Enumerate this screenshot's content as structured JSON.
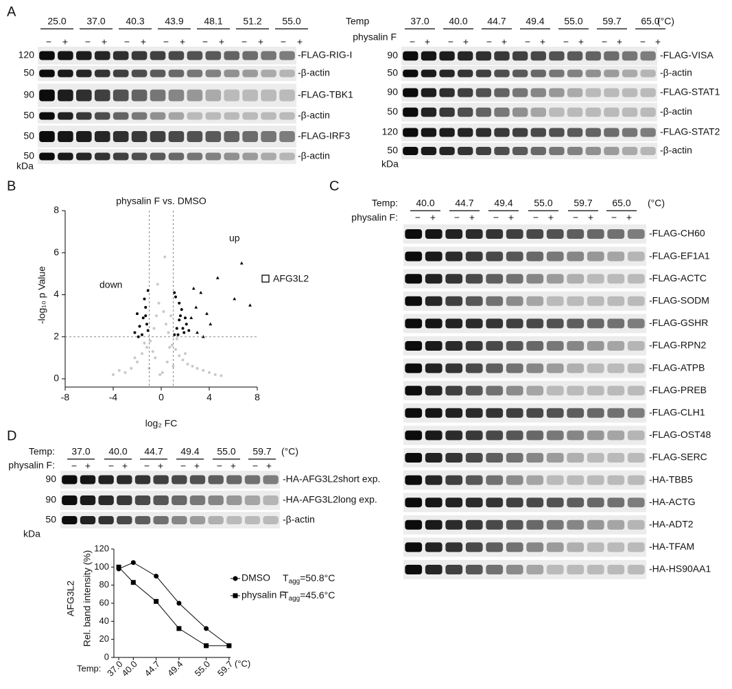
{
  "panel_labels": [
    "A",
    "B",
    "C",
    "D"
  ],
  "treatment_signs": [
    "−",
    "+"
  ],
  "kda_unit": "kDa",
  "panel_A": {
    "left": {
      "temps": [
        "25.0",
        "37.0",
        "40.3",
        "43.9",
        "48.1",
        "51.2",
        "55.0"
      ],
      "rows": [
        {
          "name": "-FLAG-RIG-I",
          "kda": "120"
        },
        {
          "name": "-β-actin",
          "kda": "50"
        },
        {
          "name": "-FLAG-TBK1",
          "kda": "90"
        },
        {
          "name": "-β-actin",
          "kda": "50"
        },
        {
          "name": "-FLAG-IRF3",
          "kda": "50"
        },
        {
          "name": "-β-actin",
          "kda": "50"
        }
      ]
    },
    "right": {
      "temp_label": "Temp",
      "treatment_label": "physalin F",
      "unit": "(°C)",
      "temps": [
        "37.0",
        "40.0",
        "44.7",
        "49.4",
        "55.0",
        "59.7",
        "65.0"
      ],
      "rows": [
        {
          "name": "-FLAG-VISA",
          "kda": "90"
        },
        {
          "name": "-β-actin",
          "kda": "50"
        },
        {
          "name": "-FLAG-STAT1",
          "kda": "90"
        },
        {
          "name": "-β-actin",
          "kda": "50"
        },
        {
          "name": "-FLAG-STAT2",
          "kda": "120"
        },
        {
          "name": "-β-actin",
          "kda": "50"
        }
      ]
    }
  },
  "panel_C": {
    "temp_label": "Temp:",
    "treatment_label": "physalin F:",
    "unit": "(°C)",
    "temps": [
      "40.0",
      "44.7",
      "49.4",
      "55.0",
      "59.7",
      "65.0"
    ],
    "rows": [
      "-FLAG-CH60",
      "-FLAG-EF1A1",
      "-FLAG-ACTC",
      "-FLAG-SODM",
      "-FLAG-GSHR",
      "-FLAG-RPN2",
      "-FLAG-ATPB",
      "-FLAG-PREB",
      "-FLAG-CLH1",
      "-FLAG-OST48",
      "-FLAG-SERC",
      "-HA-TBB5",
      "-HA-ACTG",
      "-HA-ADT2",
      "-HA-TFAM",
      "-HA-HS90AA1"
    ]
  },
  "panel_D": {
    "temp_label": "Temp:",
    "treatment_label": "physalin F:",
    "unit": "(°C)",
    "temps": [
      "37.0",
      "40.0",
      "44.7",
      "49.4",
      "55.0",
      "59.7"
    ],
    "rows": [
      {
        "name": "-HA-AFG3L2",
        "note": "short exp.",
        "kda": "90"
      },
      {
        "name": "-HA-AFG3L2",
        "note": "long exp.",
        "kda": "90"
      },
      {
        "name": "-β-actin",
        "kda": "50"
      }
    ]
  },
  "chart_data": [
    {
      "type": "scatter",
      "title": "physalin F vs. DMSO",
      "xlabel": "log₂ FC",
      "ylabel": "-log₁₀ p Value",
      "annotations": [
        "up",
        "down",
        "AFG3L2"
      ],
      "xlim": [
        -8,
        8
      ],
      "xticks": [
        -8,
        -4,
        0,
        4,
        8
      ],
      "ylim": [
        0,
        8
      ],
      "yticks": [
        0,
        2,
        4,
        6,
        8
      ],
      "hlines": [
        2
      ],
      "vlines": [
        -1,
        1
      ],
      "series": [
        {
          "color": "#c8c8c8",
          "marker": "circle",
          "x": [
            -3,
            -2.5,
            -2,
            -1.6,
            -1.2,
            -0.9,
            -0.6,
            -0.4,
            -0.2,
            0.2,
            0.4,
            0.6,
            0.9,
            1.2,
            1.5,
            1.8,
            2.2,
            2.6,
            3,
            3.5,
            4,
            4.5,
            5,
            -4,
            -3.5,
            -0.5,
            0.5,
            -0.3,
            0.3,
            0.7,
            -0.7,
            1,
            -1,
            0.1,
            -0.1,
            0.8,
            1.3,
            -1.4,
            2,
            -2.2
          ],
          "values": [
            0.3,
            0.5,
            0.8,
            1.2,
            1.5,
            1.8,
            2.4,
            3,
            3.6,
            3.2,
            2.6,
            2.2,
            1.6,
            1.4,
            1.1,
            0.9,
            0.7,
            0.6,
            0.5,
            0.4,
            0.3,
            0.2,
            0.15,
            0.2,
            0.4,
            1,
            0.8,
            4.5,
            5.8,
            1.5,
            1.3,
            0.6,
            0.5,
            0.3,
            0.2,
            3,
            1.9,
            1.7,
            1.2,
            1
          ]
        },
        {
          "color": "#000000",
          "marker": "circle",
          "x": [
            -2.2,
            -1.8,
            -1.5,
            -1.3,
            -1.1,
            -2,
            -1.6,
            -1.2,
            -1.4,
            -1.9,
            -1.1,
            -1.3
          ],
          "values": [
            2.2,
            2.5,
            2.9,
            3.4,
            4.2,
            3.1,
            2.1,
            2.6,
            3.8,
            2.0,
            2.3,
            3.0
          ]
        },
        {
          "color": "#000000",
          "marker": "circle",
          "x": [
            1.1,
            1.3,
            1.5,
            1.7,
            1.9,
            2.1,
            1.2,
            1.4,
            1.6,
            1.8,
            2.3,
            1.1,
            1.5,
            2
          ],
          "values": [
            2.1,
            2.4,
            2.8,
            3.3,
            2.2,
            2.6,
            3.9,
            2.1,
            3.0,
            2.4,
            2.3,
            4.1,
            3.6,
            2.9
          ]
        },
        {
          "color": "#000000",
          "marker": "triangle",
          "x": [
            2.5,
            2.9,
            3.3,
            3.8,
            4.1,
            3.0,
            2.7,
            4.7,
            6.7,
            7.4,
            6.1,
            3.5
          ],
          "values": [
            2.9,
            3.4,
            4.1,
            3.1,
            2.6,
            2.2,
            4.3,
            4.8,
            5.5,
            3.5,
            3.8,
            2.0
          ]
        }
      ]
    },
    {
      "type": "line",
      "xlabel": "Temp:",
      "xunit": "(°C)",
      "ylabel": [
        "AFG3L2",
        "Rel. band intensity (%)"
      ],
      "x": [
        37,
        40,
        44.7,
        49.4,
        55,
        59.7
      ],
      "xlim": [
        36,
        60
      ],
      "xticks": [
        {
          "value": 37,
          "label": "37.0"
        },
        {
          "value": 40,
          "label": "40.0"
        },
        {
          "value": 44.7,
          "label": "44.7"
        },
        {
          "value": 49.4,
          "label": "49.4"
        },
        {
          "value": 55,
          "label": "55.0"
        },
        {
          "value": 59.7,
          "label": "59.7"
        }
      ],
      "ylim": [
        0,
        120
      ],
      "yticks": [
        0,
        20,
        40,
        60,
        80,
        100,
        120
      ],
      "series": [
        {
          "name": "DMSO",
          "color": "#000000",
          "marker": "circle",
          "values": [
            98,
            105,
            90,
            60,
            32,
            13
          ],
          "tagg": {
            "symbol": "T",
            "subscript": "agg",
            "text": "=50.8°C"
          }
        },
        {
          "name": "physalin F",
          "color": "#000000",
          "marker": "square",
          "values": [
            100,
            83,
            62,
            32,
            13,
            13
          ],
          "tagg": {
            "symbol": "T",
            "subscript": "agg",
            "text": "=45.6°C"
          }
        }
      ]
    }
  ]
}
